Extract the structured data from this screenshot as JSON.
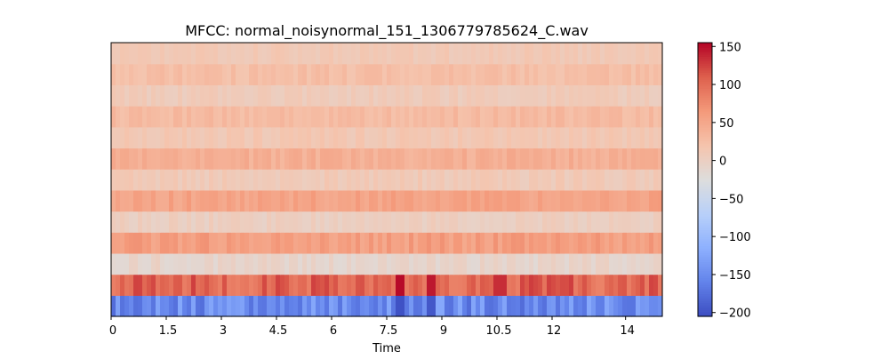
{
  "chart_data": {
    "type": "heatmap",
    "title": "MFCC: normal_noisynormal_151_1306779785624_C.wav",
    "xlabel": "Time",
    "ylabel": "",
    "xlim": [
      0,
      15.0
    ],
    "x_ticks": [
      {
        "value": 0,
        "label": "0"
      },
      {
        "value": 1.5,
        "label": "1.5"
      },
      {
        "value": 3,
        "label": "3"
      },
      {
        "value": 4.5,
        "label": "4.5"
      },
      {
        "value": 6,
        "label": "6"
      },
      {
        "value": 7.5,
        "label": "7.5"
      },
      {
        "value": 9,
        "label": "9"
      },
      {
        "value": 10.5,
        "label": "10.5"
      },
      {
        "value": 12,
        "label": "12"
      },
      {
        "value": 14,
        "label": "14"
      }
    ],
    "n_coefficients": 13,
    "row_order": "bottom-to-top",
    "row_base_values": [
      -150,
      105,
      -8,
      60,
      2,
      55,
      10,
      42,
      14,
      30,
      8,
      25,
      12
    ],
    "highlights": [
      {
        "row": 0,
        "x": 7.9,
        "value": -200
      },
      {
        "row": 0,
        "x": 8.7,
        "value": -195
      },
      {
        "row": 1,
        "x": 7.9,
        "value": 152
      },
      {
        "row": 1,
        "x": 8.7,
        "value": 145
      },
      {
        "row": 1,
        "x": 10.6,
        "value": 135
      }
    ],
    "colorbar": {
      "colormap": "coolwarm",
      "vmin": -205,
      "vmax": 155,
      "ticks": [
        {
          "value": 150,
          "label": "150"
        },
        {
          "value": 100,
          "label": "100"
        },
        {
          "value": 50,
          "label": "50"
        },
        {
          "value": 0,
          "label": "0"
        },
        {
          "value": -50,
          "label": "−50"
        },
        {
          "value": -100,
          "label": "−100"
        },
        {
          "value": -150,
          "label": "−150"
        },
        {
          "value": -200,
          "label": "−200"
        }
      ]
    },
    "grid": false,
    "legend": "none"
  }
}
